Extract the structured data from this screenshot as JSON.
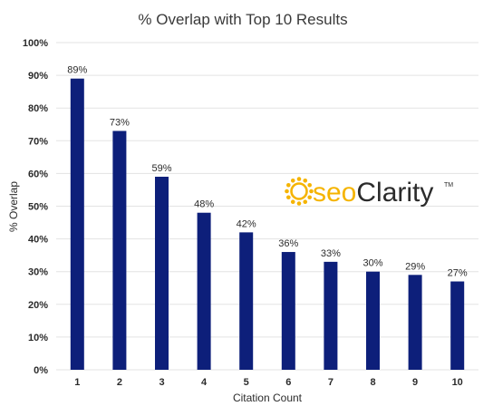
{
  "chart_data": {
    "type": "bar",
    "title": "% Overlap with Top 10 Results",
    "xlabel": "Citation Count",
    "ylabel": "% Overlap",
    "categories": [
      "1",
      "2",
      "3",
      "4",
      "5",
      "6",
      "7",
      "8",
      "9",
      "10"
    ],
    "values": [
      89,
      73,
      59,
      48,
      42,
      36,
      33,
      30,
      29,
      27
    ],
    "data_labels": [
      "89%",
      "73%",
      "59%",
      "48%",
      "42%",
      "36%",
      "33%",
      "30%",
      "29%",
      "27%"
    ],
    "ylim": [
      0,
      100
    ],
    "yticks": [
      0,
      10,
      20,
      30,
      40,
      50,
      60,
      70,
      80,
      90,
      100
    ],
    "ytick_labels": [
      "0%",
      "10%",
      "20%",
      "30%",
      "40%",
      "50%",
      "60%",
      "70%",
      "80%",
      "90%",
      "100%"
    ],
    "grid": true,
    "legend": "none",
    "bar_color": "#0d1f7a"
  },
  "logo": {
    "seo": "seo",
    "clarity": "Clarity",
    "tm": "TM",
    "seo_color": "#f5b400",
    "clarity_color": "#2b2b2b",
    "sun_color": "#f5b400"
  }
}
